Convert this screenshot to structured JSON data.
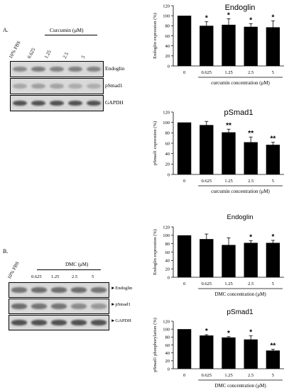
{
  "panel_a": {
    "letter": "A.",
    "header": "Curcumin  (μM)",
    "lanes": [
      "10% FBS",
      "0.625",
      "1.25",
      "2.5",
      "5"
    ],
    "blots": [
      {
        "label": "Endoglin",
        "intensity": [
          0.55,
          0.65,
          0.6,
          0.62,
          0.6
        ]
      },
      {
        "label": "pSmad1",
        "intensity": [
          0.35,
          0.4,
          0.38,
          0.32,
          0.3
        ]
      },
      {
        "label": "GAPDH",
        "intensity": [
          0.95,
          0.95,
          0.95,
          0.95,
          0.95
        ]
      }
    ]
  },
  "panel_b": {
    "letter": "B.",
    "header": "DMC (μM)",
    "lanes": [
      "10% FBS",
      "0.625",
      "1.25",
      "2.5",
      "5"
    ],
    "blots": [
      {
        "label": "Endoglin",
        "intensity": [
          0.7,
          0.75,
          0.75,
          0.75,
          0.7
        ]
      },
      {
        "label": "pSmad1",
        "intensity": [
          0.75,
          0.7,
          0.7,
          0.55,
          0.45
        ]
      },
      {
        "label": "GAPDH",
        "intensity": [
          0.95,
          0.95,
          0.95,
          0.95,
          0.95
        ]
      }
    ]
  },
  "chart_data": [
    {
      "type": "bar",
      "title": "Endoglin",
      "ylabel": "Endoglin expression (%)",
      "xlabel": "curcumin concentration (μM)",
      "categories": [
        "0",
        "0.625",
        "1.25",
        "2.5",
        "5"
      ],
      "values": [
        100,
        80,
        82,
        78,
        77
      ],
      "errors": [
        0,
        8,
        12,
        6,
        13
      ],
      "significance": [
        "",
        "*",
        "*",
        "*",
        "*"
      ],
      "ylim": [
        0,
        120
      ],
      "yticks": [
        "0",
        "20",
        "40",
        "60",
        "80",
        "100",
        "120"
      ],
      "bracket_from": 1
    },
    {
      "type": "bar",
      "title": "pSmad1",
      "ylabel": "pSmad1 expression (%)",
      "xlabel": "curcumin concentration (μM)",
      "categories": [
        "0",
        "0.625",
        "1.25",
        "2.5",
        "5"
      ],
      "values": [
        100,
        95,
        81,
        62,
        57
      ],
      "errors": [
        0,
        7,
        6,
        10,
        5
      ],
      "significance": [
        "",
        "",
        "**",
        "**",
        "**"
      ],
      "ylim": [
        0,
        120
      ],
      "yticks": [
        "0",
        "20",
        "40",
        "60",
        "80",
        "100",
        "120"
      ],
      "bracket_from": 1
    },
    {
      "type": "bar",
      "title": "Endoglin",
      "ylabel": "Endoglin expression (%)",
      "xlabel": "DMC concentration (μM)",
      "categories": [
        "0",
        "0.625",
        "1.25",
        "2.5",
        "5"
      ],
      "values": [
        100,
        91,
        77,
        82,
        82
      ],
      "errors": [
        0,
        12,
        17,
        5,
        6
      ],
      "significance": [
        "",
        "",
        "",
        "*",
        "*"
      ],
      "ylim": [
        0,
        120
      ],
      "yticks": [
        "0",
        "20",
        "40",
        "60",
        "80",
        "100",
        "120"
      ],
      "bracket_from": 1
    },
    {
      "type": "bar",
      "title": "pSmad1",
      "ylabel": "pSmad1 phosphorylation (%)",
      "xlabel": "DMC concentration (μM)",
      "categories": [
        "0",
        "0.625",
        "1.25",
        "2.5",
        "5"
      ],
      "values": [
        100,
        84,
        79,
        74,
        46
      ],
      "errors": [
        0,
        2,
        2,
        9,
        3
      ],
      "significance": [
        "",
        "*",
        "*",
        "*",
        "**"
      ],
      "ylim": [
        0,
        120
      ],
      "yticks": [
        "0",
        "20",
        "40",
        "60",
        "80",
        "100",
        "120"
      ],
      "bracket_from": 1
    }
  ]
}
